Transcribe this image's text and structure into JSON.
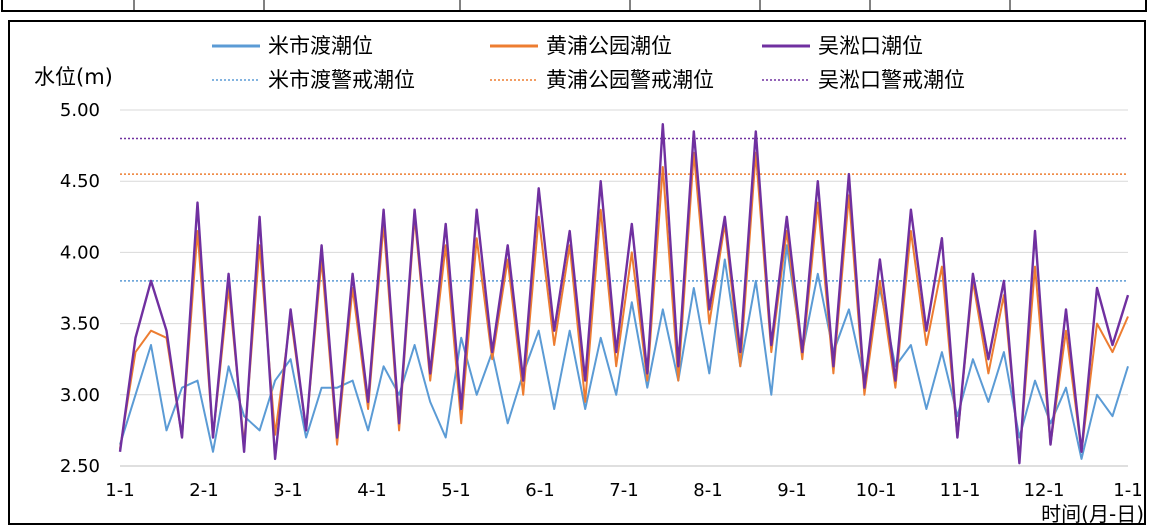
{
  "chart_data": {
    "type": "line",
    "ylabel": "水位(m)",
    "xlabel": "时间(月-日)",
    "ylim": [
      2.5,
      5.0
    ],
    "yticks": [
      "2.50",
      "3.00",
      "3.50",
      "4.00",
      "4.50",
      "5.00"
    ],
    "xtick_labels": [
      "1-1",
      "2-1",
      "3-1",
      "4-1",
      "5-1",
      "6-1",
      "7-1",
      "8-1",
      "9-1",
      "10-1",
      "11-1",
      "12-1",
      "1-1"
    ],
    "grid": "horizontal",
    "legend_position": "top",
    "series": [
      {
        "name": "米市渡潮位",
        "color": "#5b9bd5",
        "style": "solid",
        "values": [
          2.65,
          3.0,
          3.35,
          2.75,
          3.05,
          3.1,
          2.6,
          3.2,
          2.85,
          2.75,
          3.1,
          3.25,
          2.7,
          3.05,
          3.05,
          3.1,
          2.75,
          3.2,
          3.0,
          3.35,
          2.95,
          2.7,
          3.4,
          3.0,
          3.3,
          2.8,
          3.15,
          3.45,
          2.9,
          3.45,
          2.9,
          3.4,
          3.0,
          3.65,
          3.05,
          3.6,
          3.1,
          3.75,
          3.15,
          3.95,
          3.2,
          3.8,
          3.0,
          4.05,
          3.3,
          3.85,
          3.3,
          3.6,
          3.1,
          3.75,
          3.2,
          3.35,
          2.9,
          3.3,
          2.85,
          3.25,
          2.95,
          3.3,
          2.7,
          3.1,
          2.8,
          3.05,
          2.55,
          3.0,
          2.85,
          3.2
        ]
      },
      {
        "name": "黄浦公园潮位",
        "color": "#ed7d31",
        "style": "solid",
        "values": [
          2.62,
          3.3,
          3.45,
          3.4,
          2.7,
          4.15,
          2.7,
          3.75,
          2.65,
          4.05,
          2.72,
          3.55,
          2.75,
          3.95,
          2.65,
          3.75,
          2.9,
          4.2,
          2.75,
          4.25,
          3.1,
          4.05,
          2.8,
          4.1,
          3.25,
          3.95,
          3.0,
          4.25,
          3.35,
          4.05,
          2.95,
          4.3,
          3.2,
          4.0,
          3.1,
          4.6,
          3.1,
          4.7,
          3.5,
          4.2,
          3.2,
          4.7,
          3.3,
          4.15,
          3.25,
          4.35,
          3.15,
          4.4,
          3.0,
          3.8,
          3.05,
          4.15,
          3.35,
          3.9,
          2.7,
          3.8,
          3.15,
          3.7,
          2.55,
          3.9,
          2.65,
          3.45,
          2.6,
          3.5,
          3.3,
          3.55
        ]
      },
      {
        "name": "吴淞口潮位",
        "color": "#7030a0",
        "style": "solid",
        "values": [
          2.6,
          3.4,
          3.8,
          3.45,
          2.7,
          4.35,
          2.7,
          3.85,
          2.6,
          4.25,
          2.55,
          3.6,
          2.75,
          4.05,
          2.7,
          3.85,
          2.95,
          4.3,
          2.8,
          4.3,
          3.15,
          4.2,
          2.9,
          4.3,
          3.3,
          4.05,
          3.1,
          4.45,
          3.45,
          4.15,
          3.1,
          4.5,
          3.3,
          4.2,
          3.15,
          4.9,
          3.2,
          4.85,
          3.6,
          4.25,
          3.3,
          4.85,
          3.35,
          4.25,
          3.3,
          4.5,
          3.2,
          4.55,
          3.05,
          3.95,
          3.1,
          4.3,
          3.45,
          4.1,
          2.7,
          3.85,
          3.25,
          3.8,
          2.52,
          4.15,
          2.65,
          3.6,
          2.6,
          3.75,
          3.35,
          3.7
        ]
      },
      {
        "name": "米市渡警戒潮位",
        "color": "#5b9bd5",
        "style": "dotted",
        "values": [
          3.8
        ]
      },
      {
        "name": "黄浦公园警戒潮位",
        "color": "#ed7d31",
        "style": "dotted",
        "values": [
          4.55
        ]
      },
      {
        "name": "吴淞口警戒潮位",
        "color": "#7030a0",
        "style": "dotted",
        "values": [
          4.8
        ]
      }
    ]
  }
}
